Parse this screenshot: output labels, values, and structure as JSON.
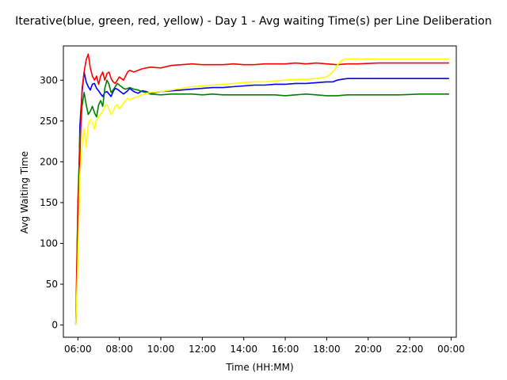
{
  "chart_data": {
    "type": "line",
    "title": "Iterative(blue, green, red, yellow) - Day 1 - Avg waiting Time(s) per Line Deliberation",
    "xlabel": "Time (HH:MM)",
    "ylabel": "Avg Waiting Time",
    "x_unit": "hours since 06:00",
    "xlim": [
      5.8,
      24.75
    ],
    "ylim": [
      -15,
      342
    ],
    "x_ticks": [
      {
        "value": 6.5,
        "label": "06:00"
      },
      {
        "value": 8.5,
        "label": "08:00"
      },
      {
        "value": 10.5,
        "label": "10:00"
      },
      {
        "value": 12.5,
        "label": "12:00"
      },
      {
        "value": 14.5,
        "label": "14:00"
      },
      {
        "value": 16.5,
        "label": "16:00"
      },
      {
        "value": 18.5,
        "label": "18:00"
      },
      {
        "value": 20.5,
        "label": "20:00"
      },
      {
        "value": 22.5,
        "label": "22:00"
      },
      {
        "value": 24.5,
        "label": "00:00"
      }
    ],
    "y_ticks": [
      {
        "value": 0,
        "label": "0"
      },
      {
        "value": 50,
        "label": "50"
      },
      {
        "value": 100,
        "label": "100"
      },
      {
        "value": 150,
        "label": "150"
      },
      {
        "value": 200,
        "label": "200"
      },
      {
        "value": 250,
        "label": "250"
      },
      {
        "value": 300,
        "label": "300"
      }
    ],
    "grid": false,
    "series": [
      {
        "color": "#0000ff",
        "x": [
          6.4,
          6.5,
          6.6,
          6.7,
          6.8,
          6.9,
          7.0,
          7.1,
          7.2,
          7.3,
          7.4,
          7.5,
          7.6,
          7.7,
          7.8,
          7.9,
          8.0,
          8.1,
          8.2,
          8.3,
          8.4,
          8.5,
          8.6,
          8.7,
          8.8,
          8.9,
          9.0,
          9.2,
          9.4,
          9.6,
          9.8,
          10.0,
          10.5,
          11.0,
          11.5,
          12.0,
          12.5,
          13.0,
          13.5,
          14.0,
          14.5,
          15.0,
          15.5,
          16.0,
          16.5,
          17.0,
          17.5,
          18.0,
          18.5,
          18.8,
          19.0,
          19.2,
          19.5,
          20.0,
          21.0,
          22.0,
          23.0,
          24.0,
          24.4
        ],
        "values": [
          0,
          110,
          245,
          285,
          310,
          298,
          292,
          288,
          295,
          296,
          290,
          287,
          283,
          280,
          285,
          286,
          283,
          280,
          286,
          290,
          289,
          287,
          285,
          283,
          285,
          287,
          290,
          286,
          284,
          287,
          286,
          284,
          286,
          287,
          288,
          289,
          290,
          291,
          291,
          292,
          293,
          294,
          294,
          295,
          295,
          296,
          296,
          297,
          298,
          298,
          300,
          301,
          302,
          302,
          302,
          302,
          302,
          302,
          302
        ]
      },
      {
        "color": "#008000",
        "x": [
          6.4,
          6.5,
          6.6,
          6.7,
          6.8,
          6.9,
          7.0,
          7.1,
          7.2,
          7.3,
          7.4,
          7.5,
          7.6,
          7.7,
          7.8,
          7.9,
          8.0,
          8.1,
          8.2,
          8.3,
          8.4,
          8.5,
          8.6,
          8.7,
          8.8,
          8.9,
          9.0,
          9.2,
          9.4,
          9.6,
          9.8,
          10.0,
          10.5,
          11.0,
          11.5,
          12.0,
          12.5,
          13.0,
          13.5,
          14.0,
          14.5,
          15.0,
          15.5,
          16.0,
          16.5,
          17.0,
          17.5,
          18.0,
          18.5,
          19.0,
          19.5,
          20.0,
          21.0,
          22.0,
          23.0,
          24.0,
          24.4
        ],
        "values": [
          0,
          150,
          230,
          268,
          285,
          270,
          258,
          262,
          268,
          260,
          255,
          270,
          275,
          268,
          290,
          300,
          295,
          285,
          288,
          292,
          296,
          294,
          292,
          290,
          289,
          290,
          291,
          289,
          288,
          286,
          285,
          283,
          282,
          283,
          283,
          283,
          282,
          283,
          282,
          282,
          282,
          282,
          282,
          282,
          281,
          282,
          283,
          282,
          281,
          281,
          282,
          282,
          282,
          282,
          283,
          283,
          283
        ]
      },
      {
        "color": "#ff0000",
        "x": [
          6.4,
          6.5,
          6.6,
          6.7,
          6.8,
          6.9,
          7.0,
          7.1,
          7.2,
          7.3,
          7.4,
          7.5,
          7.6,
          7.7,
          7.8,
          7.9,
          8.0,
          8.1,
          8.2,
          8.3,
          8.4,
          8.5,
          8.6,
          8.7,
          8.8,
          8.9,
          9.0,
          9.2,
          9.4,
          9.6,
          9.8,
          10.0,
          10.5,
          11.0,
          11.5,
          12.0,
          12.5,
          13.0,
          13.5,
          14.0,
          14.5,
          15.0,
          15.5,
          16.0,
          16.5,
          17.0,
          17.5,
          18.0,
          18.5,
          19.0,
          19.5,
          20.0,
          21.0,
          22.0,
          23.0,
          24.0,
          24.4
        ],
        "values": [
          0,
          140,
          210,
          290,
          310,
          325,
          332,
          315,
          305,
          300,
          305,
          295,
          305,
          310,
          300,
          308,
          310,
          302,
          298,
          296,
          300,
          304,
          302,
          300,
          305,
          310,
          312,
          310,
          312,
          314,
          315,
          316,
          315,
          318,
          319,
          320,
          319,
          319,
          319,
          320,
          319,
          319,
          320,
          320,
          320,
          321,
          320,
          321,
          320,
          319,
          320,
          320,
          321,
          321,
          321,
          321,
          321
        ]
      },
      {
        "color": "#ffff00",
        "x": [
          6.4,
          6.5,
          6.6,
          6.7,
          6.8,
          6.9,
          7.0,
          7.1,
          7.2,
          7.3,
          7.4,
          7.5,
          7.6,
          7.7,
          7.8,
          7.9,
          8.0,
          8.1,
          8.2,
          8.3,
          8.4,
          8.5,
          8.6,
          8.7,
          8.8,
          8.9,
          9.0,
          9.2,
          9.4,
          9.6,
          9.8,
          10.0,
          10.5,
          11.0,
          11.5,
          12.0,
          12.5,
          13.0,
          13.5,
          14.0,
          14.5,
          15.0,
          15.5,
          16.0,
          16.5,
          17.0,
          17.5,
          18.0,
          18.5,
          18.8,
          19.0,
          19.2,
          19.4,
          19.6,
          20.0,
          20.5,
          21.0,
          22.0,
          23.0,
          24.0,
          24.4
        ],
        "values": [
          0,
          80,
          185,
          220,
          240,
          218,
          245,
          252,
          248,
          240,
          252,
          255,
          258,
          262,
          268,
          270,
          265,
          258,
          262,
          268,
          270,
          265,
          268,
          272,
          275,
          278,
          276,
          278,
          280,
          282,
          284,
          285,
          286,
          288,
          290,
          292,
          293,
          294,
          295,
          296,
          297,
          298,
          298,
          299,
          300,
          301,
          301,
          302,
          304,
          310,
          318,
          324,
          326,
          326,
          326,
          326,
          326,
          326,
          326,
          326,
          326
        ]
      }
    ]
  }
}
